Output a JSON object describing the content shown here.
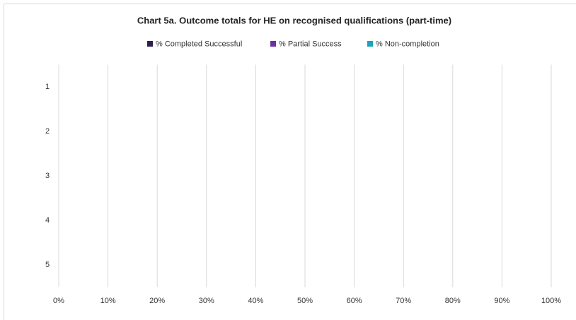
{
  "chart_data": {
    "type": "bar",
    "orientation": "horizontal",
    "stacked": true,
    "title": "Chart 5a. Outcome totals for HE on recognised qualifications (part-time)",
    "categories": [
      "1",
      "2",
      "3",
      "4",
      "5"
    ],
    "series": [
      {
        "name": "% Completed Successful",
        "color": "#2e1f4f",
        "values": [
          null,
          null,
          null,
          null,
          null
        ]
      },
      {
        "name": "% Partial Success",
        "color": "#7030a0",
        "values": [
          null,
          null,
          null,
          null,
          null
        ]
      },
      {
        "name": "% Non-completion",
        "color": "#1aa4b8",
        "values": [
          null,
          null,
          null,
          null,
          null
        ]
      }
    ],
    "xlim": [
      0,
      100
    ],
    "xticks": [
      {
        "value": 0,
        "label": "0%"
      },
      {
        "value": 10,
        "label": "10%"
      },
      {
        "value": 20,
        "label": "20%"
      },
      {
        "value": 30,
        "label": "30%"
      },
      {
        "value": 40,
        "label": "40%"
      },
      {
        "value": 50,
        "label": "50%"
      },
      {
        "value": 60,
        "label": "60%"
      },
      {
        "value": 70,
        "label": "70%"
      },
      {
        "value": 80,
        "label": "80%"
      },
      {
        "value": 90,
        "label": "90%"
      },
      {
        "value": 100,
        "label": "100%"
      }
    ],
    "grid": true,
    "legend": "top"
  }
}
